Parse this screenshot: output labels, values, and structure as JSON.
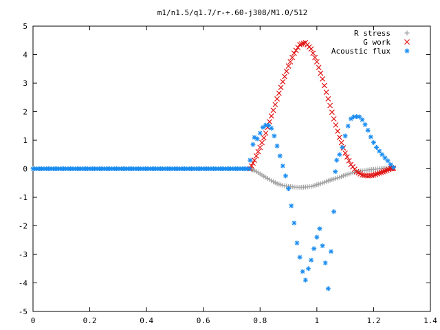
{
  "chart_data": {
    "type": "scatter",
    "title": "m1/n1.5/q1.7/r-+.60-j308/M1.0/512",
    "xlim": [
      0,
      1.4
    ],
    "ylim": [
      -5,
      5
    ],
    "xticks": [
      "0",
      "0.2",
      "0.4",
      "0.6",
      "0.8",
      "1",
      "1.2",
      "1.4"
    ],
    "yticks": [
      "5",
      "4",
      "3",
      "2",
      "1",
      "0",
      "-1",
      "-2",
      "-3",
      "-4",
      "-5"
    ],
    "legend_position": "top-right",
    "grid": false,
    "series": [
      {
        "name": "R stress",
        "marker": "plus",
        "color": "#a0a0a0",
        "points": [
          [
            0.765,
            0
          ],
          [
            0.78,
            -0.06
          ],
          [
            0.8,
            -0.18
          ],
          [
            0.82,
            -0.3
          ],
          [
            0.84,
            -0.42
          ],
          [
            0.86,
            -0.52
          ],
          [
            0.88,
            -0.58
          ],
          [
            0.9,
            -0.62
          ],
          [
            0.92,
            -0.64
          ],
          [
            0.94,
            -0.65
          ],
          [
            0.96,
            -0.64
          ],
          [
            0.98,
            -0.62
          ],
          [
            1.0,
            -0.56
          ],
          [
            1.02,
            -0.5
          ],
          [
            1.04,
            -0.42
          ],
          [
            1.06,
            -0.36
          ],
          [
            1.08,
            -0.3
          ],
          [
            1.1,
            -0.22
          ],
          [
            1.12,
            -0.16
          ],
          [
            1.14,
            -0.1
          ],
          [
            1.16,
            -0.07
          ],
          [
            1.18,
            -0.04
          ],
          [
            1.2,
            -0.02
          ],
          [
            1.22,
            0
          ],
          [
            1.24,
            0.02
          ],
          [
            1.26,
            0.03
          ],
          [
            1.27,
            0.05
          ]
        ]
      },
      {
        "name": "G work",
        "marker": "cross",
        "color": "#e01010",
        "points": [
          [
            0.765,
            0
          ],
          [
            0.78,
            0.3
          ],
          [
            0.8,
            0.75
          ],
          [
            0.82,
            1.25
          ],
          [
            0.84,
            1.85
          ],
          [
            0.86,
            2.45
          ],
          [
            0.88,
            3.05
          ],
          [
            0.9,
            3.6
          ],
          [
            0.92,
            4.05
          ],
          [
            0.94,
            4.35
          ],
          [
            0.96,
            4.42
          ],
          [
            0.98,
            4.2
          ],
          [
            1.0,
            3.75
          ],
          [
            1.02,
            3.15
          ],
          [
            1.04,
            2.45
          ],
          [
            1.06,
            1.75
          ],
          [
            1.08,
            1.1
          ],
          [
            1.1,
            0.55
          ],
          [
            1.12,
            0.15
          ],
          [
            1.14,
            -0.1
          ],
          [
            1.16,
            -0.22
          ],
          [
            1.18,
            -0.25
          ],
          [
            1.2,
            -0.22
          ],
          [
            1.22,
            -0.15
          ],
          [
            1.24,
            -0.08
          ],
          [
            1.26,
            0
          ],
          [
            1.27,
            0.02
          ]
        ]
      },
      {
        "name": "Acoustic flux",
        "marker": "star",
        "color": "#1a8cf0",
        "points": [
          [
            0.765,
            0.3
          ],
          [
            0.775,
            0.85
          ],
          [
            0.78,
            1.1
          ],
          [
            0.79,
            1.05
          ],
          [
            0.8,
            1.25
          ],
          [
            0.81,
            1.45
          ],
          [
            0.82,
            1.53
          ],
          [
            0.83,
            1.52
          ],
          [
            0.84,
            1.42
          ],
          [
            0.85,
            1.15
          ],
          [
            0.86,
            0.8
          ],
          [
            0.87,
            0.45
          ],
          [
            0.88,
            0.1
          ],
          [
            0.89,
            -0.25
          ],
          [
            0.9,
            -0.7
          ],
          [
            0.91,
            -1.3
          ],
          [
            0.92,
            -1.9
          ],
          [
            0.93,
            -2.6
          ],
          [
            0.94,
            -3.1
          ],
          [
            0.95,
            -3.6
          ],
          [
            0.96,
            -3.9
          ],
          [
            0.97,
            -3.5
          ],
          [
            0.98,
            -3.2
          ],
          [
            0.99,
            -2.8
          ],
          [
            1.0,
            -2.4
          ],
          [
            1.01,
            -2.1
          ],
          [
            1.02,
            -2.7
          ],
          [
            1.03,
            -3.3
          ],
          [
            1.04,
            -4.2
          ],
          [
            1.05,
            -2.9
          ],
          [
            1.06,
            -1.5
          ],
          [
            1.065,
            -0.1
          ],
          [
            1.07,
            0.3
          ],
          [
            1.08,
            0.5
          ],
          [
            1.09,
            0.75
          ],
          [
            1.1,
            1.15
          ],
          [
            1.11,
            1.5
          ],
          [
            1.12,
            1.75
          ],
          [
            1.13,
            1.82
          ],
          [
            1.14,
            1.83
          ],
          [
            1.15,
            1.82
          ],
          [
            1.16,
            1.72
          ],
          [
            1.17,
            1.55
          ],
          [
            1.18,
            1.35
          ],
          [
            1.19,
            1.12
          ],
          [
            1.2,
            0.92
          ],
          [
            1.21,
            0.75
          ],
          [
            1.22,
            0.62
          ],
          [
            1.23,
            0.5
          ],
          [
            1.24,
            0.38
          ],
          [
            1.25,
            0.28
          ],
          [
            1.26,
            0.15
          ],
          [
            1.27,
            0.05
          ]
        ],
        "baseline": {
          "from": 0,
          "to": 0.765,
          "y": 0
        }
      }
    ]
  }
}
